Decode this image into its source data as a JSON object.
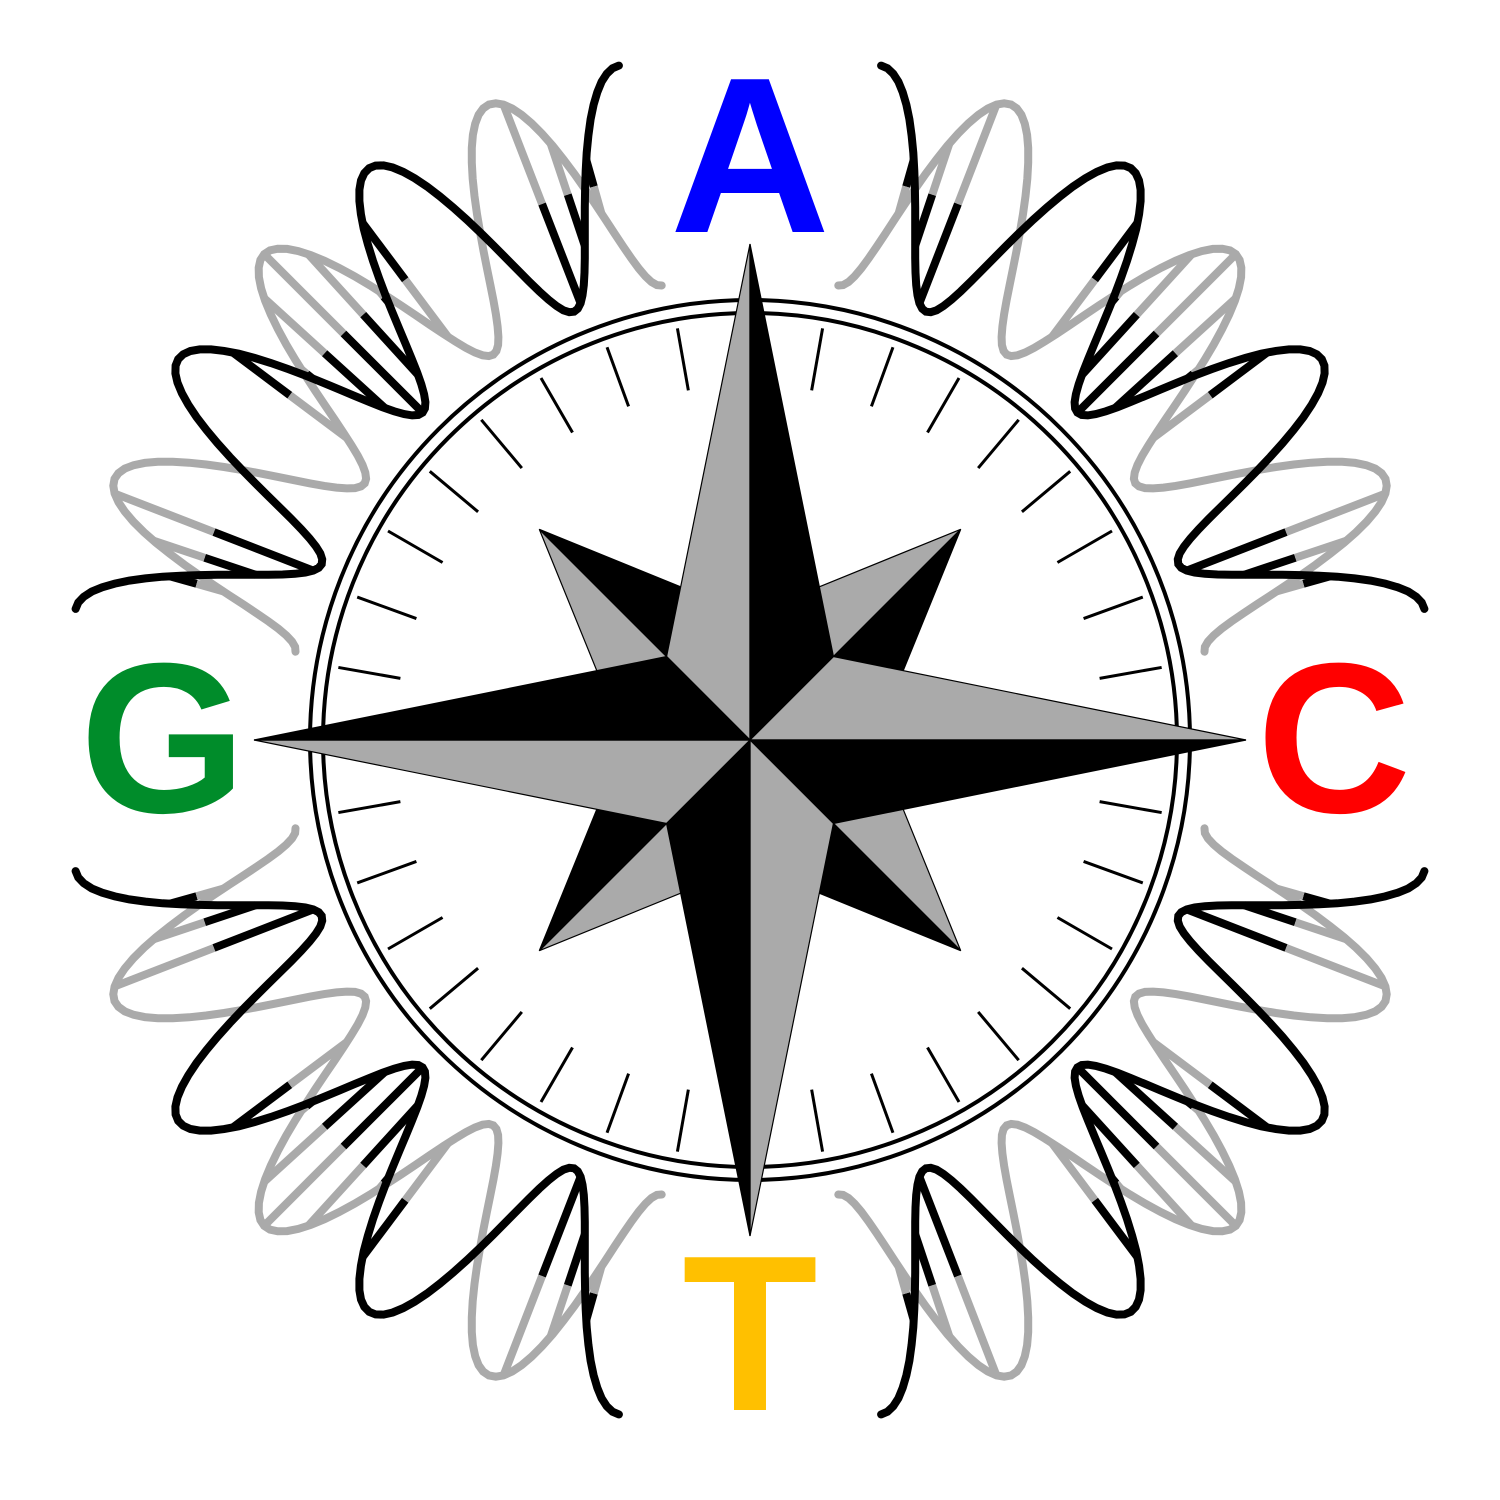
{
  "logo": {
    "letters": {
      "top": {
        "text": "A",
        "color": "#0000ff"
      },
      "right": {
        "text": "C",
        "color": "#ff0000"
      },
      "bottom": {
        "text": "T",
        "color": "#ffc000"
      },
      "left": {
        "text": "G",
        "color": "#008c2a"
      }
    },
    "colors": {
      "dark": "#000000",
      "light": "#aaaaaa",
      "background": "#ffffff"
    },
    "compass": {
      "tick_marks": 36,
      "main_points": 4,
      "secondary_points": 4
    },
    "helix": {
      "segments": 4,
      "strands": 2
    }
  }
}
